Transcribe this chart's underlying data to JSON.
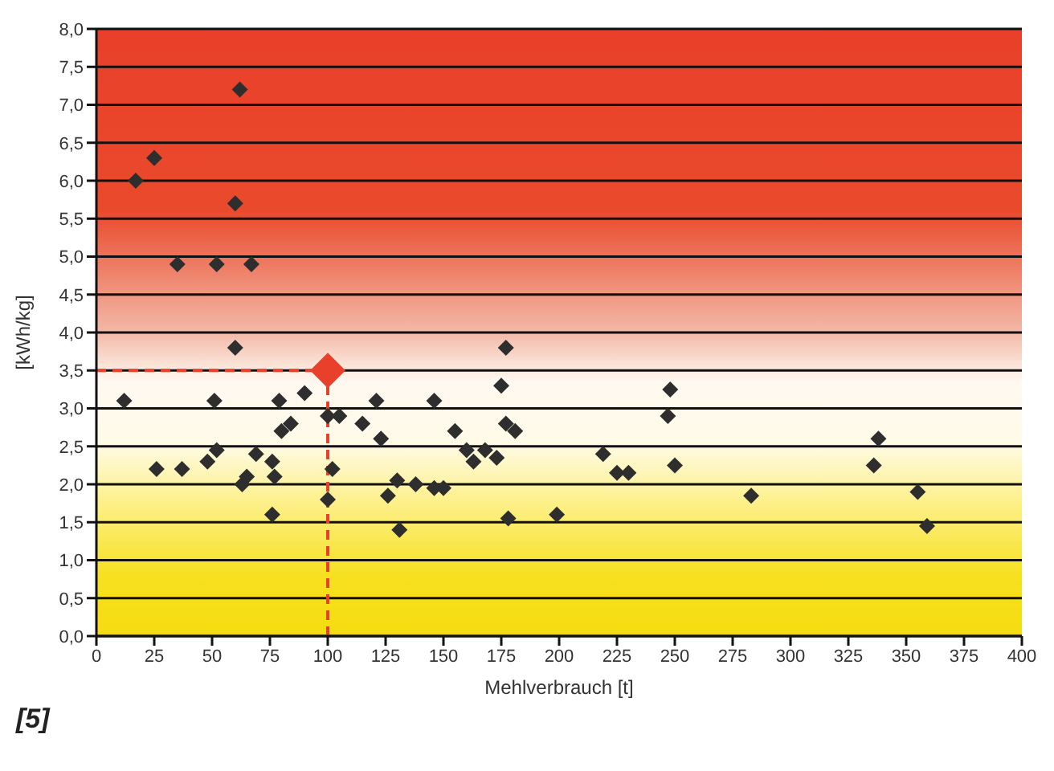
{
  "chart_data": {
    "type": "scatter",
    "xlabel": "Mehlverbrauch [t]",
    "ylabel": "[kWh/kg]",
    "annotations": [
      "[5]"
    ],
    "xlim": [
      0,
      400
    ],
    "xticks": [
      0,
      25,
      50,
      75,
      100,
      125,
      150,
      175,
      200,
      225,
      250,
      275,
      300,
      325,
      350,
      375,
      400
    ],
    "ylim": [
      0,
      8
    ],
    "yticks": [
      {
        "value": 0,
        "label": "0,0"
      },
      {
        "value": 0.5,
        "label": "0,5"
      },
      {
        "value": 1,
        "label": "1,0"
      },
      {
        "value": 1.5,
        "label": "1,5"
      },
      {
        "value": 2,
        "label": "2,0"
      },
      {
        "value": 2.5,
        "label": "2,5"
      },
      {
        "value": 3,
        "label": "3,0"
      },
      {
        "value": 3.5,
        "label": "3,5"
      },
      {
        "value": 4,
        "label": "4,0"
      },
      {
        "value": 4.5,
        "label": "4,5"
      },
      {
        "value": 5,
        "label": "5,0"
      },
      {
        "value": 5.5,
        "label": "5,5"
      },
      {
        "value": 6,
        "label": "6,0"
      },
      {
        "value": 6.5,
        "label": "6,5"
      },
      {
        "value": 7,
        "label": "7,0"
      },
      {
        "value": 7.5,
        "label": "7,5"
      },
      {
        "value": 8,
        "label": "8,0"
      }
    ],
    "grid": "y",
    "marker": "diamond",
    "series": [
      {
        "color": "#2e2e2e",
        "x": [
          12,
          17,
          25,
          35,
          52,
          67,
          60,
          62,
          60,
          26,
          37,
          51,
          48,
          52,
          69,
          63,
          65,
          76,
          77,
          76,
          79,
          80,
          84,
          90,
          100,
          105,
          100,
          102,
          115,
          121,
          123,
          126,
          130,
          131,
          138,
          146,
          150,
          146,
          155,
          160,
          163,
          168,
          173,
          175,
          177,
          177,
          181,
          178,
          199,
          219,
          225,
          230,
          248,
          247,
          250,
          283,
          338,
          336,
          355,
          359
        ],
        "values": [
          3.1,
          6.0,
          6.3,
          4.9,
          4.9,
          4.9,
          5.7,
          7.2,
          3.8,
          2.2,
          2.2,
          3.1,
          2.3,
          2.45,
          2.4,
          2.0,
          2.1,
          2.3,
          2.1,
          1.6,
          3.1,
          2.7,
          2.8,
          3.2,
          2.9,
          2.9,
          1.8,
          2.2,
          2.8,
          3.1,
          2.6,
          1.85,
          2.05,
          1.4,
          2.0,
          1.95,
          1.95,
          3.1,
          2.7,
          2.45,
          2.3,
          2.45,
          2.35,
          3.3,
          3.8,
          2.8,
          2.7,
          1.55,
          1.6,
          2.4,
          2.15,
          2.15,
          3.25,
          2.9,
          2.25,
          1.85,
          2.6,
          2.25,
          1.9,
          1.45
        ]
      },
      {
        "color": "#e8402a",
        "x": [
          100
        ],
        "values": [
          3.5
        ]
      }
    ],
    "ref_lines": [
      {
        "axis": "y",
        "value": 3.5,
        "color": "#e8402a",
        "line_style": "dashed"
      },
      {
        "axis": "x",
        "value": 100,
        "color": "#e8402a",
        "line_style": "dashed"
      }
    ]
  }
}
